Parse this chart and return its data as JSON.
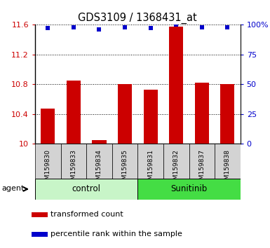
{
  "title": "GDS3109 / 1368431_at",
  "samples": [
    "GSM159830",
    "GSM159833",
    "GSM159834",
    "GSM159835",
    "GSM159831",
    "GSM159832",
    "GSM159837",
    "GSM159838"
  ],
  "bar_values": [
    10.47,
    10.85,
    10.05,
    10.8,
    10.73,
    11.58,
    10.82,
    10.8
  ],
  "percentile_values": [
    97,
    98,
    96,
    98,
    97,
    100,
    98,
    98
  ],
  "bar_color": "#cc0000",
  "dot_color": "#0000cc",
  "ylim_left": [
    10.0,
    11.6
  ],
  "ylim_right": [
    0,
    100
  ],
  "yticks_left": [
    10.0,
    10.4,
    10.8,
    11.2,
    11.6
  ],
  "ytick_labels_left": [
    "10",
    "10.4",
    "10.8",
    "11.2",
    "11.6"
  ],
  "yticks_right": [
    0,
    25,
    50,
    75,
    100
  ],
  "ytick_labels_right": [
    "0",
    "25",
    "50",
    "75",
    "100%"
  ],
  "groups": [
    {
      "label": "control",
      "start": 0,
      "end": 4,
      "color": "#c8f5c8"
    },
    {
      "label": "Sunitinib",
      "start": 4,
      "end": 8,
      "color": "#44dd44"
    }
  ],
  "agent_label": "agent",
  "legend_items": [
    {
      "color": "#cc0000",
      "label": "transformed count"
    },
    {
      "color": "#0000cc",
      "label": "percentile rank within the sample"
    }
  ],
  "plot_bg": "#ffffff",
  "sample_box_color": "#d3d3d3",
  "bar_width": 0.55
}
